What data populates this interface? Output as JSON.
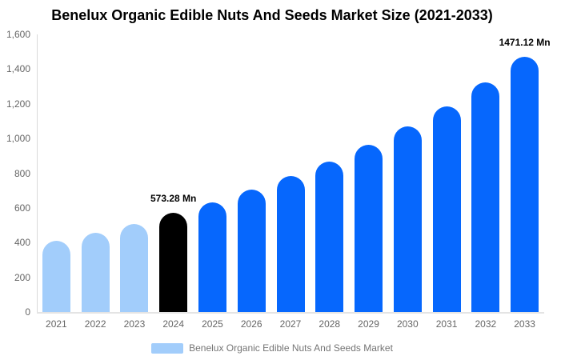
{
  "colors": {
    "historical_bar": "#a2cdfb",
    "base_bar": "#000000",
    "forecast_bar": "#0667fd",
    "y_axis_line": "#d9d9d9",
    "x_axis_line": "#e4e4e4",
    "tick_label_text": "#666666",
    "value_label_text": "#000000",
    "legend_text": "#757575",
    "title_text": "#000000",
    "background": "#ffffff"
  },
  "legend": {
    "label": "Benelux Organic Edible Nuts And Seeds Market"
  },
  "chart_data": {
    "type": "bar",
    "title": "Benelux Organic Edible Nuts And Seeds Market Size (2021-2033)",
    "unit": "Mn",
    "categories": [
      "2021",
      "2022",
      "2023",
      "2024",
      "2025",
      "2026",
      "2027",
      "2028",
      "2029",
      "2030",
      "2031",
      "2032",
      "2033"
    ],
    "values": [
      410,
      458,
      508,
      573.28,
      633,
      705,
      786,
      866,
      963,
      1070,
      1184,
      1322,
      1471.12
    ],
    "bar_roles": [
      "historical",
      "historical",
      "historical",
      "base",
      "forecast",
      "forecast",
      "forecast",
      "forecast",
      "forecast",
      "forecast",
      "forecast",
      "forecast",
      "forecast"
    ],
    "data_labels": [
      "",
      "",
      "",
      "573.28 Mn",
      "",
      "",
      "",
      "",
      "",
      "",
      "",
      "",
      "1471.12 Mn"
    ],
    "xlabel": "",
    "ylabel": "",
    "ylim": [
      0,
      1600
    ],
    "y_ticks": [
      {
        "value": 0,
        "label": "0"
      },
      {
        "value": 200,
        "label": "200"
      },
      {
        "value": 400,
        "label": "400"
      },
      {
        "value": 600,
        "label": "600"
      },
      {
        "value": 800,
        "label": "800"
      },
      {
        "value": 1000,
        "label": "1,000"
      },
      {
        "value": 1200,
        "label": "1,200"
      },
      {
        "value": 1400,
        "label": "1,400"
      },
      {
        "value": 1600,
        "label": "1,600"
      }
    ],
    "grid": false,
    "legend_position": "bottom",
    "rounded_bar_tops": true
  }
}
